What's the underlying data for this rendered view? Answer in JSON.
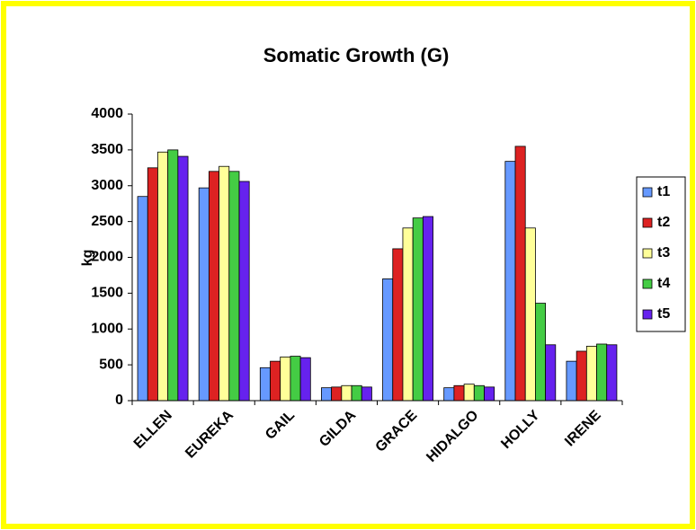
{
  "chart_data": {
    "type": "bar",
    "title": "Somatic Growth (G)",
    "ylabel": "kg",
    "categories": [
      "ELLEN",
      "EUREKA",
      "GAIL",
      "GILDA",
      "GRACE",
      "HIDALGO",
      "HOLLY",
      "IRENE"
    ],
    "series": [
      {
        "name": "t1",
        "color": "#6699ff",
        "values": [
          2850,
          2970,
          460,
          180,
          1700,
          180,
          3340,
          550
        ]
      },
      {
        "name": "t2",
        "color": "#dd2222",
        "values": [
          3250,
          3200,
          550,
          190,
          2120,
          210,
          3550,
          690
        ]
      },
      {
        "name": "t3",
        "color": "#ffff99",
        "values": [
          3470,
          3270,
          610,
          210,
          2410,
          230,
          2410,
          760
        ]
      },
      {
        "name": "t4",
        "color": "#44cc44",
        "values": [
          3500,
          3200,
          620,
          210,
          2550,
          210,
          1360,
          790
        ]
      },
      {
        "name": "t5",
        "color": "#6622ee",
        "values": [
          3410,
          3060,
          600,
          190,
          2570,
          190,
          780,
          780
        ]
      }
    ],
    "ylim": [
      0,
      4000
    ],
    "yticks": [
      0,
      500,
      1000,
      1500,
      2000,
      2500,
      3000,
      3500,
      4000
    ],
    "grid": false,
    "legend": "right"
  }
}
